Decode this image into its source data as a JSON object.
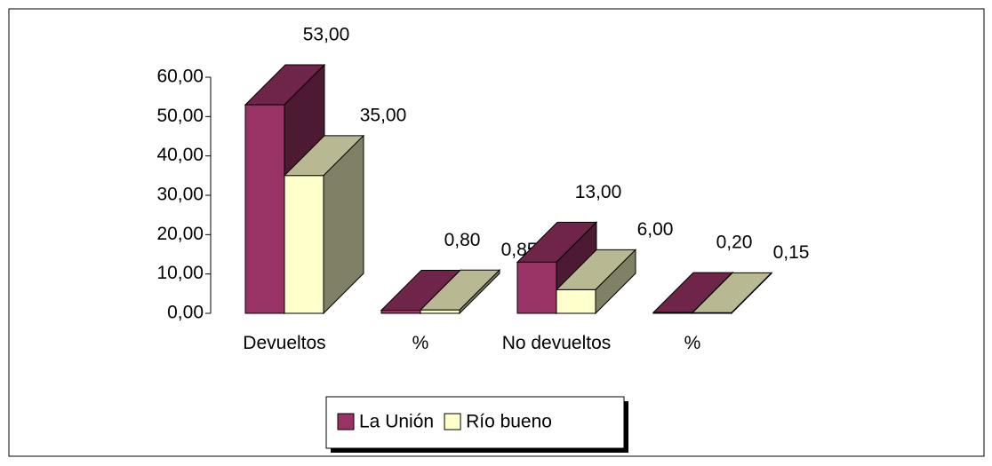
{
  "chart_data": {
    "type": "bar3d",
    "categories": [
      "Devueltos",
      "%",
      "No devueltos",
      "%"
    ],
    "series": [
      {
        "name": "La Unión",
        "color": "#993366",
        "values": [
          53,
          0.8,
          13,
          0.2
        ],
        "value_labels": [
          "53,00",
          "0,80",
          "13,00",
          "0,20"
        ]
      },
      {
        "name": "Río bueno",
        "color": "#ffffcc",
        "values": [
          35,
          0.85,
          6,
          0.15
        ],
        "value_labels": [
          "35,00",
          "0,85",
          "6,00",
          "0,15"
        ]
      }
    ],
    "ylim": [
      0,
      60
    ],
    "yticks": [
      {
        "value": 0,
        "label": "0,00"
      },
      {
        "value": 10,
        "label": "10,00"
      },
      {
        "value": 20,
        "label": "20,00"
      },
      {
        "value": 30,
        "label": "30,00"
      },
      {
        "value": 40,
        "label": "40,00"
      },
      {
        "value": 50,
        "label": "50,00"
      },
      {
        "value": 60,
        "label": "60,00"
      }
    ],
    "legend": "bottom"
  }
}
